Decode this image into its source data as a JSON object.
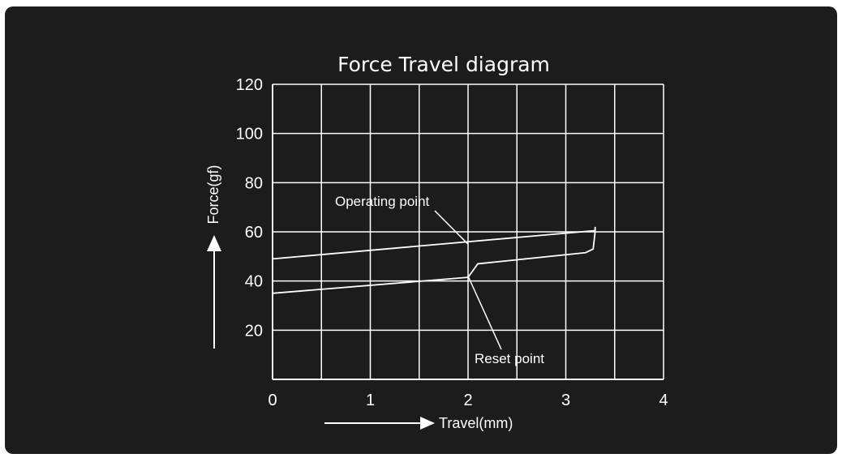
{
  "chart_data": {
    "type": "line",
    "title": "Force Travel diagram",
    "xlabel": "Travel(mm)",
    "ylabel": "Force(gf)",
    "xlim": [
      0,
      4
    ],
    "ylim": [
      0,
      120
    ],
    "x_ticks": [
      "0",
      "1",
      "2",
      "3",
      "4"
    ],
    "y_ticks": [
      "20",
      "40",
      "60",
      "80",
      "100",
      "120"
    ],
    "grid": true,
    "series": [
      {
        "values": [
          [
            0,
            49
          ],
          [
            3.3,
            60.5
          ],
          [
            3.3,
            62
          ]
        ]
      },
      {
        "values": [
          [
            0,
            35
          ],
          [
            2.0,
            41.5
          ],
          [
            2.1,
            47
          ],
          [
            3.2,
            51.5
          ],
          [
            3.28,
            53
          ],
          [
            3.3,
            60
          ]
        ]
      }
    ],
    "annotations": [
      {
        "text": "Operating point",
        "x": 2.0,
        "y": 55
      },
      {
        "text": "Reset point",
        "x": 2.0,
        "y": 42
      }
    ],
    "colors": {
      "background": "#1c1c1c",
      "foreground": "#ffffff"
    }
  }
}
